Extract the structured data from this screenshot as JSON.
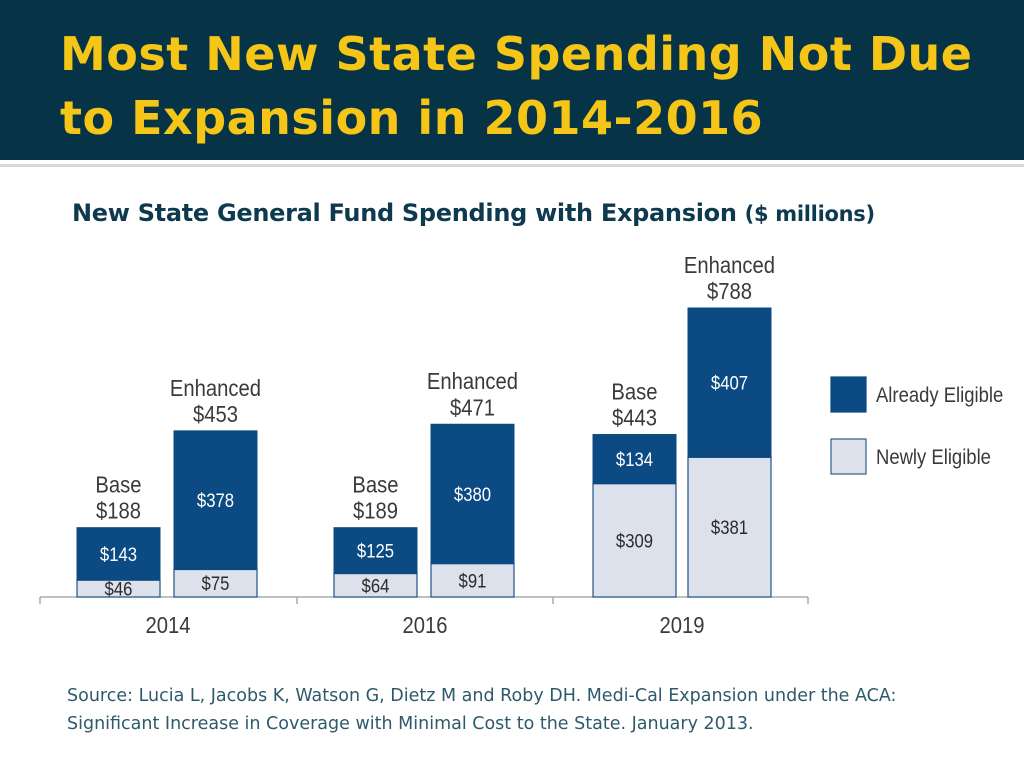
{
  "header": {
    "title": "Most New State Spending Not Due to Expansion in 2014-2016"
  },
  "source": "Source: Lucia L, Jacobs K, Watson G, Dietz M and Roby DH. Medi-Cal Expansion under the ACA: Significant Increase in Coverage with Minimal Cost to the State. January 2013.",
  "colors": {
    "header_bg": "#063446",
    "title": "#f5c518",
    "already": "#0b4a82",
    "newly": "#dde1ec",
    "newly_border": "#2f5e8e"
  },
  "chart_data": {
    "type": "bar",
    "stacked": true,
    "title": "New State General Fund Spending with Expansion",
    "title_unit": "($ millions)",
    "categories": [
      "2014",
      "2016",
      "2019"
    ],
    "groups": [
      "Base",
      "Enhanced"
    ],
    "series": [
      {
        "name": "Newly Eligible",
        "color": "#dde1ec",
        "values": {
          "2014": {
            "Base": 46,
            "Enhanced": 75
          },
          "2016": {
            "Base": 64,
            "Enhanced": 91
          },
          "2019": {
            "Base": 309,
            "Enhanced": 381
          }
        }
      },
      {
        "name": "Already Eligible",
        "color": "#0b4a82",
        "values": {
          "2014": {
            "Base": 143,
            "Enhanced": 378
          },
          "2016": {
            "Base": 125,
            "Enhanced": 380
          },
          "2019": {
            "Base": 134,
            "Enhanced": 407
          }
        }
      }
    ],
    "totals": {
      "2014": {
        "Base": "$188",
        "Enhanced": "$453"
      },
      "2016": {
        "Base": "$189",
        "Enhanced": "$471"
      },
      "2019": {
        "Base": "$443",
        "Enhanced": "$788"
      }
    },
    "segment_labels": {
      "2014": {
        "Base": [
          "$46",
          "$143"
        ],
        "Enhanced": [
          "$75",
          "$378"
        ]
      },
      "2016": {
        "Base": [
          "$64",
          "$125"
        ],
        "Enhanced": [
          "$91",
          "$380"
        ]
      },
      "2019": {
        "Base": [
          "$309",
          "$134"
        ],
        "Enhanced": [
          "$381",
          "$407"
        ]
      }
    },
    "legend": [
      {
        "label": "Already Eligible",
        "color": "#0b4a82"
      },
      {
        "label": "Newly Eligible",
        "color": "#dde1ec"
      }
    ],
    "legend_position": "right",
    "ylim": [
      0,
      800
    ],
    "grid": false
  }
}
